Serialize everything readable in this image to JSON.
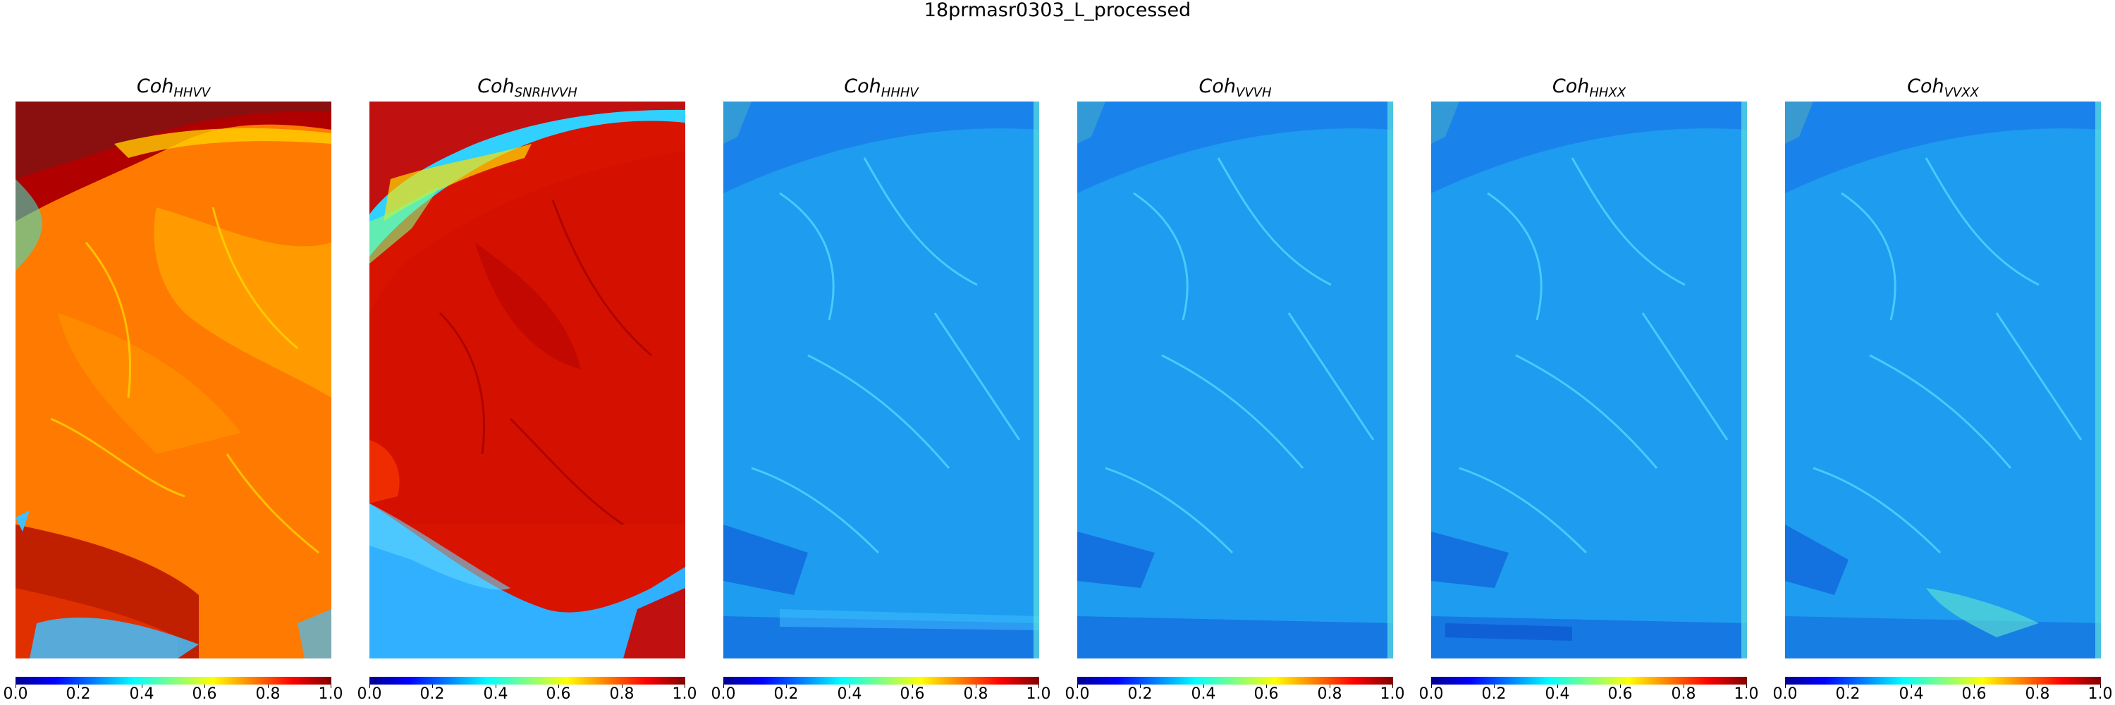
{
  "figure_title": "18prmasr0303_L_processed",
  "colorbar": {
    "colormap": "jet",
    "ticks": [
      "0.0",
      "0.2",
      "0.4",
      "0.6",
      "0.8",
      "1.0"
    ]
  },
  "chart_data": [
    {
      "type": "heatmap",
      "title": "Coh_HHVV",
      "title_base": "Coh",
      "title_sub": "HHVV",
      "vmin": 0.0,
      "vmax": 1.0,
      "dominant_value": 0.75
    },
    {
      "type": "heatmap",
      "title": "Coh_SNRHVVH",
      "title_base": "Coh",
      "title_sub": "SNRHVVH",
      "vmin": 0.0,
      "vmax": 1.0,
      "dominant_value": 0.92
    },
    {
      "type": "heatmap",
      "title": "Coh_HHHV",
      "title_base": "Coh",
      "title_sub": "HHHV",
      "vmin": 0.0,
      "vmax": 1.0,
      "dominant_value": 0.3
    },
    {
      "type": "heatmap",
      "title": "Coh_VVVH",
      "title_base": "Coh",
      "title_sub": "VVVH",
      "vmin": 0.0,
      "vmax": 1.0,
      "dominant_value": 0.3
    },
    {
      "type": "heatmap",
      "title": "Coh_HHXX",
      "title_base": "Coh",
      "title_sub": "HHXX",
      "vmin": 0.0,
      "vmax": 1.0,
      "dominant_value": 0.3
    },
    {
      "type": "heatmap",
      "title": "Coh_VVXX",
      "title_base": "Coh",
      "title_sub": "VVXX",
      "vmin": 0.0,
      "vmax": 1.0,
      "dominant_value": 0.3
    }
  ]
}
